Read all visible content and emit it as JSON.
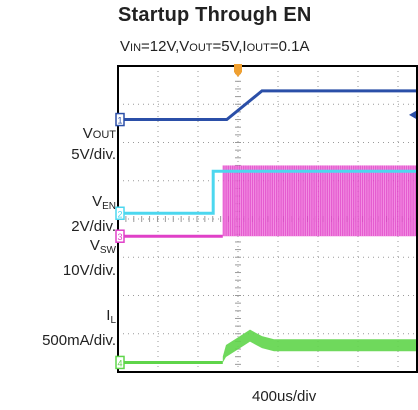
{
  "chart_data": {
    "type": "line",
    "title": "Startup Through EN",
    "subtitle": {
      "vin_label": "IN",
      "vin_value": "=12V,",
      "vout_label": "OUT",
      "vout_value": "=5V,",
      "iout_label": "OUT",
      "iout_value": "=0.1A"
    },
    "xlabel": "400us/div",
    "grid": true,
    "grid_divisions": {
      "x": 7.5,
      "y": 8
    },
    "xlim": [
      0,
      7.5
    ],
    "ylim": [
      0,
      8
    ],
    "trigger_marker_x": 3.0,
    "series": [
      {
        "name": "VOUT",
        "label_main": "OUT",
        "label_scale": "5V/div.",
        "channel": "1",
        "color": "#2b4fa8",
        "x": [
          0,
          2.72,
          3.6,
          7.5
        ],
        "y": [
          6.6,
          6.6,
          7.35,
          7.35
        ]
      },
      {
        "name": "VEN",
        "label_main": "EN",
        "label_scale": "2V/div.",
        "channel": "2",
        "color": "#4cd7ef",
        "x": [
          0,
          2.38,
          2.38,
          7.5
        ],
        "y": [
          4.15,
          4.15,
          5.25,
          5.25
        ]
      },
      {
        "name": "VSW",
        "label_main": "SW",
        "label_scale": "10V/div.",
        "channel": "3",
        "color": "#e040c8",
        "x": [
          0,
          2.62,
          2.62,
          7.5
        ],
        "y": [
          3.55,
          3.55,
          5.4,
          5.4
        ]
      },
      {
        "name": "IL",
        "label_main": "L",
        "label_scale": "500mA/div.",
        "channel": "4",
        "color": "#5fd54a",
        "x": [
          0,
          2.62,
          2.7,
          3.0,
          3.3,
          3.6,
          3.9,
          7.5
        ],
        "y": [
          0.25,
          0.25,
          0.55,
          0.75,
          0.95,
          0.78,
          0.7,
          0.7
        ]
      }
    ],
    "colors": {
      "frame": "#000000",
      "grid": "#9a9a9a",
      "trigger": "#f0a030"
    }
  }
}
